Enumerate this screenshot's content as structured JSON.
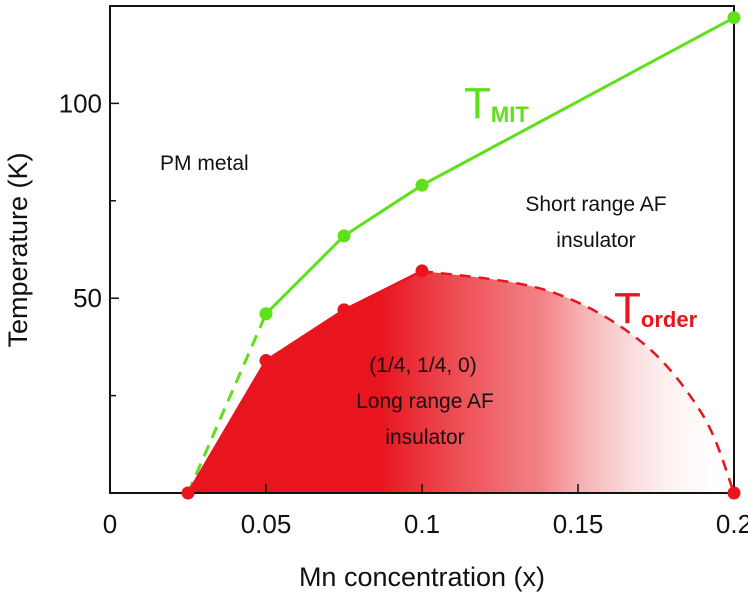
{
  "chart_data": {
    "type": "line",
    "xlabel": "Mn concentration (x)",
    "ylabel": "Temperature (K)",
    "xlim": [
      0,
      0.2
    ],
    "ylim": [
      0,
      125
    ],
    "x_ticks": [
      0,
      0.05,
      0.1,
      0.15,
      0.2
    ],
    "x_tick_labels": [
      "0",
      "0.05",
      "0.1",
      "0.15",
      "0.2"
    ],
    "y_ticks": [
      50,
      100
    ],
    "y_tick_labels": [
      "50",
      "100"
    ],
    "y_minor_ticks": [
      25,
      75
    ],
    "grid": false,
    "series": [
      {
        "name_main": "T",
        "name_sub": "MIT",
        "color": "#5ee01a",
        "x": [
          0.05,
          0.075,
          0.1,
          0.2
        ],
        "y": [
          46,
          66,
          79,
          122
        ],
        "dashed_extension": {
          "x": [
            0.025,
            0.05
          ],
          "y": [
            0,
            46
          ]
        }
      },
      {
        "name_main": "T",
        "name_sub": "order",
        "color": "#e8141e",
        "x": [
          0.025,
          0.05,
          0.075,
          0.1
        ],
        "y": [
          0,
          34,
          47,
          57
        ],
        "end_point": {
          "x": 0.2,
          "y": 0
        },
        "dashed_extension": {
          "x": [
            0.1,
            0.14,
            0.17,
            0.19,
            0.2
          ],
          "y": [
            57,
            52,
            39,
            20,
            0
          ]
        }
      }
    ],
    "regions": {
      "pm_metal": "PM metal",
      "short_range_line1": "Short range AF",
      "short_range_line2": "insulator",
      "long_range_line1": "(1/4, 1/4, 0)",
      "long_range_line2": "Long range AF",
      "long_range_line3": "insulator"
    }
  }
}
